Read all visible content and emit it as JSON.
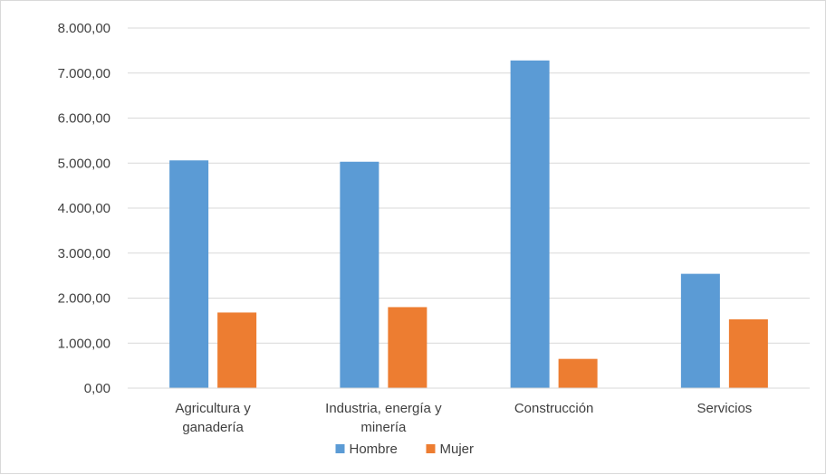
{
  "chart_data": {
    "type": "bar",
    "categories": [
      [
        "Agricultura y",
        "ganadería"
      ],
      [
        "Industria, energía y",
        "minería"
      ],
      [
        "Construcción"
      ],
      [
        "Servicios"
      ]
    ],
    "series": [
      {
        "name": "Hombre",
        "color": "#5b9bd5",
        "values": [
          5060,
          5030,
          7280,
          2540
        ]
      },
      {
        "name": "Mujer",
        "color": "#ed7d31",
        "values": [
          1680,
          1800,
          650,
          1530
        ]
      }
    ],
    "y_ticks": [
      "0,00",
      "1.000,00",
      "2.000,00",
      "3.000,00",
      "4.000,00",
      "5.000,00",
      "6.000,00",
      "7.000,00",
      "8.000,00"
    ],
    "ylim": [
      0,
      8000
    ],
    "grid": true,
    "legend_position": "bottom",
    "title": "",
    "xlabel": "",
    "ylabel": ""
  }
}
